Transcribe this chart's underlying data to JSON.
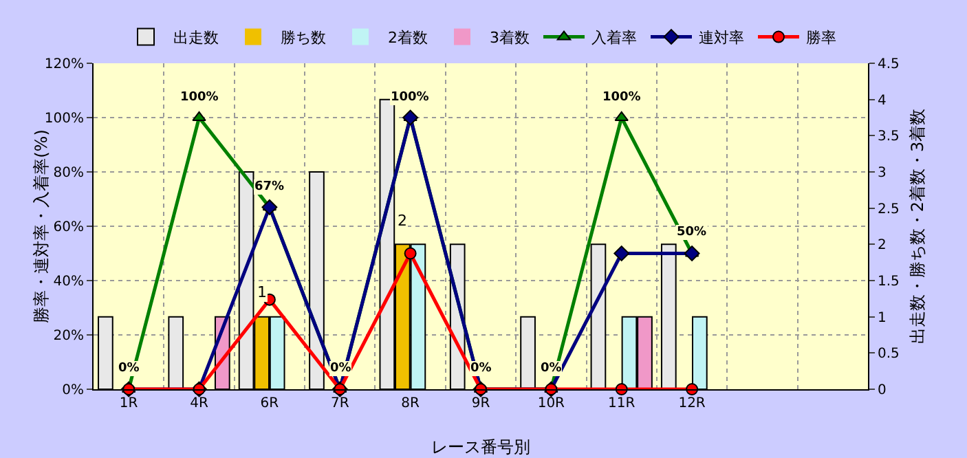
{
  "chart_data": {
    "type": "bar",
    "xlabel": "レース番号別",
    "ylabel": "勝率・連対率・入着率(%)",
    "y2label": "出走数・勝ち数・2着数・3着数",
    "categories": [
      "1R",
      "4R",
      "6R",
      "7R",
      "8R",
      "9R",
      "10R",
      "11R",
      "12R",
      null,
      null
    ],
    "series": [
      {
        "name": "出走数",
        "axis": "y2",
        "color": "#e8e8e8",
        "values": [
          1,
          1,
          3,
          3,
          4,
          2,
          1,
          2,
          2,
          null,
          null
        ]
      },
      {
        "name": "勝ち数",
        "axis": "y2",
        "color": "#f0c000",
        "values": [
          0,
          0,
          1,
          0,
          2,
          0,
          0,
          0,
          0,
          null,
          null
        ],
        "value_labels": [
          null,
          null,
          "1",
          null,
          "2",
          null,
          null,
          null,
          null,
          null,
          null
        ]
      },
      {
        "name": "2着数",
        "axis": "y2",
        "color": "#c0f4f4",
        "values": [
          0,
          0,
          1,
          0,
          2,
          0,
          0,
          1,
          1,
          null,
          null
        ]
      },
      {
        "name": "3着数",
        "axis": "y2",
        "color": "#f098c8",
        "values": [
          0,
          1,
          0,
          0,
          0,
          0,
          0,
          1,
          0,
          null,
          null
        ]
      },
      {
        "name": "入着率",
        "type": "line",
        "axis": "y",
        "color": "#008000",
        "marker": "triangle",
        "values": [
          0,
          100,
          67,
          0,
          100,
          0,
          0,
          100,
          50,
          null,
          null
        ],
        "value_labels": [
          "0%",
          "100%",
          "67%",
          "0%",
          "100%",
          "0%",
          "0%",
          "100%",
          "50%",
          null,
          null
        ]
      },
      {
        "name": "連対率",
        "type": "line",
        "axis": "y",
        "color": "#000080",
        "marker": "diamond",
        "values": [
          0,
          0,
          67,
          0,
          100,
          0,
          0,
          50,
          50,
          null,
          null
        ]
      },
      {
        "name": "勝率",
        "type": "line",
        "axis": "y",
        "color": "#ff0000",
        "marker": "circle",
        "values": [
          0,
          0,
          33,
          0,
          50,
          0,
          0,
          0,
          0,
          null,
          null
        ]
      }
    ],
    "ylim": [
      0,
      120
    ],
    "yticks": [
      {
        "value": 0,
        "label": "0%"
      },
      {
        "value": 20,
        "label": "20%"
      },
      {
        "value": 40,
        "label": "40%"
      },
      {
        "value": 60,
        "label": "60%"
      },
      {
        "value": 80,
        "label": "80%"
      },
      {
        "value": 100,
        "label": "100%"
      },
      {
        "value": 120,
        "label": "120%"
      }
    ],
    "y2lim": [
      0,
      4.5
    ],
    "y2ticks": [
      0,
      0.5,
      1,
      1.5,
      2,
      2.5,
      3,
      3.5,
      4,
      4.5
    ],
    "grid": true,
    "legend": "top"
  }
}
